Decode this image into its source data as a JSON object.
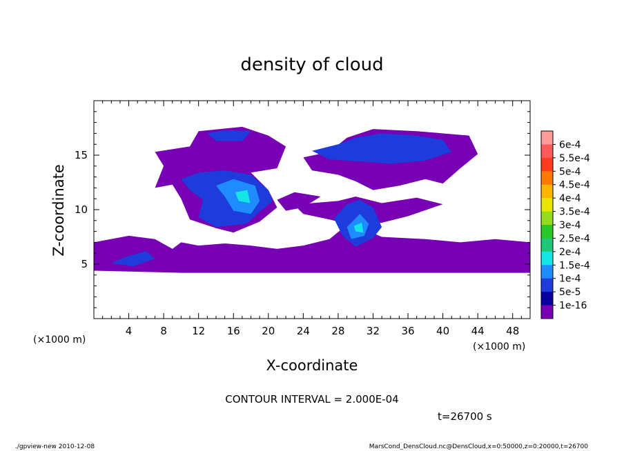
{
  "chart_data": {
    "type": "heatmap",
    "title": "density of cloud",
    "xlabel": "X-coordinate",
    "ylabel": "Z-coordinate",
    "x_unit": "(×1000 m)",
    "x_unit_right": "(×1000 m)",
    "xlim": [
      0,
      50
    ],
    "ylim": [
      0,
      20
    ],
    "x_ticks": [
      4,
      8,
      12,
      16,
      20,
      24,
      28,
      32,
      36,
      40,
      44,
      48
    ],
    "y_ticks": [
      5,
      10,
      15
    ],
    "colorbar": {
      "labels": [
        "6e-4",
        "5.5e-4",
        "5e-4",
        "4.5e-4",
        "4e-4",
        "3.5e-4",
        "3e-4",
        "2.5e-4",
        "2e-4",
        "1.5e-4",
        "1e-4",
        "5e-5",
        "1e-16"
      ],
      "colors": [
        "#ff9a9a",
        "#ff5a5a",
        "#ff3c1e",
        "#ff7800",
        "#ffb400",
        "#e6e600",
        "#96dc1e",
        "#28c828",
        "#1ec878",
        "#14e6e6",
        "#1e8cff",
        "#1e3cdc",
        "#0a00a0",
        "#7800b4"
      ]
    },
    "regions": [
      {
        "level": "1e-16",
        "color": "#7800b4",
        "polygons": [
          [
            [
              0,
              4.4
            ],
            [
              10,
              4.2
            ],
            [
              25,
              4.2
            ],
            [
              50,
              4.2
            ],
            [
              50,
              7
            ],
            [
              46,
              7.3
            ],
            [
              42,
              7
            ],
            [
              38,
              7.3
            ],
            [
              33,
              7.5
            ],
            [
              31,
              8.2
            ],
            [
              29,
              8.6
            ],
            [
              27,
              7.3
            ],
            [
              24,
              6.7
            ],
            [
              21,
              6.4
            ],
            [
              18,
              6.7
            ],
            [
              15,
              6.9
            ],
            [
              12,
              6.7
            ],
            [
              10,
              7
            ],
            [
              9,
              6.4
            ],
            [
              7,
              7.3
            ],
            [
              4,
              7.6
            ],
            [
              0,
              7
            ]
          ],
          [
            [
              7,
              12
            ],
            [
              8,
              14
            ],
            [
              7,
              15.3
            ],
            [
              11,
              15.8
            ],
            [
              12,
              17.2
            ],
            [
              17,
              17.6
            ],
            [
              20,
              16.8
            ],
            [
              22,
              15.8
            ],
            [
              21,
              13.8
            ],
            [
              18,
              13.4
            ],
            [
              20,
              11.8
            ],
            [
              21,
              10.2
            ],
            [
              19,
              8.9
            ],
            [
              16,
              7.9
            ],
            [
              14,
              8.3
            ],
            [
              11,
              9.1
            ],
            [
              10,
              11
            ],
            [
              9,
              12.3
            ]
          ],
          [
            [
              24,
              14.8
            ],
            [
              27,
              15.3
            ],
            [
              29,
              16.6
            ],
            [
              32,
              17.4
            ],
            [
              37,
              17.2
            ],
            [
              43,
              16.8
            ],
            [
              44,
              15.1
            ],
            [
              42,
              13.8
            ],
            [
              40,
              12.4
            ],
            [
              38,
              12.8
            ],
            [
              35,
              12.2
            ],
            [
              32,
              11.8
            ],
            [
              30,
              12.6
            ],
            [
              28,
              13.2
            ],
            [
              25,
              13.6
            ]
          ],
          [
            [
              23,
              10.4
            ],
            [
              25,
              10.6
            ],
            [
              28,
              10.8
            ],
            [
              30,
              11.2
            ],
            [
              33,
              10.6
            ],
            [
              37,
              11.1
            ],
            [
              40,
              10.5
            ],
            [
              36,
              9.4
            ],
            [
              33,
              8.8
            ],
            [
              30,
              8.5
            ],
            [
              27,
              9.1
            ],
            [
              24,
              9.6
            ]
          ],
          [
            [
              21,
              10.9
            ],
            [
              23,
              11.6
            ],
            [
              26,
              11.2
            ],
            [
              24,
              10.2
            ],
            [
              22,
              9.9
            ]
          ]
        ]
      },
      {
        "level": "5e-5",
        "color": "#1e3cdc",
        "polygons": [
          [
            [
              10,
              12.8
            ],
            [
              12,
              13.4
            ],
            [
              15,
              13.6
            ],
            [
              18,
              13.2
            ],
            [
              20,
              11.8
            ],
            [
              20.5,
              10.8
            ],
            [
              19,
              9.8
            ],
            [
              17.5,
              8.7
            ],
            [
              14,
              8.4
            ],
            [
              12,
              9.3
            ],
            [
              12.5,
              10.9
            ],
            [
              11,
              11.8
            ]
          ],
          [
            [
              25,
              15.4
            ],
            [
              28,
              16
            ],
            [
              30,
              16.6
            ],
            [
              33,
              17
            ],
            [
              37,
              16.8
            ],
            [
              40,
              16.4
            ],
            [
              41,
              15.3
            ],
            [
              38,
              14.5
            ],
            [
              34,
              14.2
            ],
            [
              31,
              14.4
            ],
            [
              27,
              14.6
            ]
          ],
          [
            [
              27.5,
              9.2
            ],
            [
              29,
              10.5
            ],
            [
              30.5,
              10.9
            ],
            [
              32,
              10.2
            ],
            [
              33,
              8.4
            ],
            [
              32,
              7.4
            ],
            [
              30,
              6.6
            ],
            [
              28.5,
              7.6
            ]
          ],
          [
            [
              13,
              17
            ],
            [
              15,
              17.3
            ],
            [
              18,
              17.2
            ],
            [
              17,
              16.3
            ],
            [
              14,
              16.3
            ]
          ],
          [
            [
              2,
              5.1
            ],
            [
              3.8,
              5.7
            ],
            [
              6,
              6.2
            ],
            [
              7,
              5.5
            ],
            [
              4.5,
              4.8
            ]
          ]
        ]
      },
      {
        "level": "1e-4",
        "color": "#1e8cff",
        "polygons": [
          [
            [
              14,
              12.2
            ],
            [
              16,
              12.8
            ],
            [
              18.5,
              12.2
            ],
            [
              19,
              10.8
            ],
            [
              18,
              9.6
            ],
            [
              16,
              9.9
            ],
            [
              15,
              11.2
            ]
          ],
          [
            [
              29,
              8.4
            ],
            [
              30.5,
              9.6
            ],
            [
              31.5,
              8.7
            ],
            [
              31,
              7.6
            ],
            [
              29.5,
              7.3
            ]
          ]
        ]
      },
      {
        "level": "1.5e-4",
        "color": "#14e6e6",
        "polygons": [
          [
            [
              16.2,
              11.6
            ],
            [
              17.6,
              11.8
            ],
            [
              17.9,
              10.6
            ],
            [
              16.6,
              10.8
            ]
          ],
          [
            [
              29.8,
              8.5
            ],
            [
              30.7,
              8.8
            ],
            [
              30.9,
              7.9
            ],
            [
              30,
              8
            ]
          ]
        ]
      }
    ]
  },
  "annotations": {
    "contour": "CONTOUR INTERVAL = 2.000E-04",
    "time": "t=26700 s"
  },
  "footer": {
    "left": "./gpview-new  2010-12-08",
    "right": "MarsCond_DensCloud.nc@DensCloud,x=0:50000,z=0:20000,t=26700"
  }
}
